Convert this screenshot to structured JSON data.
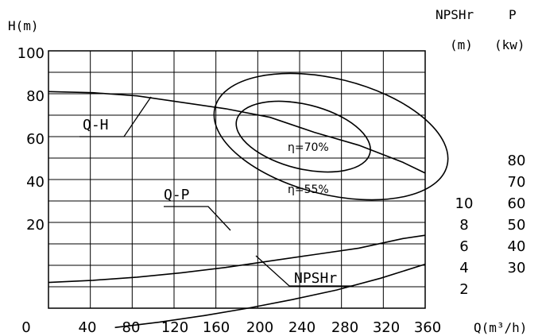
{
  "chart_data": {
    "type": "line",
    "x_axis": {
      "label": "Q(m³/h)",
      "min": 0,
      "max": 340,
      "ticks": [
        "0",
        "40",
        "80",
        "120",
        "160",
        "200",
        "240",
        "280",
        "320",
        "360"
      ]
    },
    "y_axes": {
      "head": {
        "title": "H(m)",
        "min": 0,
        "max": 100,
        "ticks": [
          "100",
          "80",
          "60",
          "40",
          "20"
        ]
      },
      "npshr": {
        "title": "NPSHr",
        "unit": "(m)",
        "ticks": [
          "10",
          "8",
          "6",
          "4",
          "2"
        ]
      },
      "power": {
        "title": "P",
        "unit": "(kw)",
        "ticks": [
          "80",
          "70",
          "60",
          "50",
          "40",
          "30"
        ]
      }
    },
    "series": [
      {
        "name": "Q-H",
        "axis": "head",
        "x": [
          0,
          40,
          80,
          120,
          160,
          200,
          240,
          280,
          320,
          340
        ],
        "y": [
          81,
          80.5,
          79,
          76,
          73,
          69,
          62,
          56,
          48,
          43
        ]
      },
      {
        "name": "Q-P",
        "axis": "power",
        "x": [
          0,
          40,
          80,
          120,
          160,
          200,
          240,
          280,
          320,
          340
        ],
        "y": [
          22,
          23,
          24.5,
          26.5,
          29,
          32,
          35,
          38,
          42.5,
          44
        ]
      },
      {
        "name": "NPSHr",
        "axis": "npshr",
        "x": [
          60,
          100,
          140,
          180,
          220,
          260,
          300,
          340
        ],
        "y": [
          2.2,
          2.7,
          3.3,
          4.0,
          4.8,
          5.7,
          6.8,
          8.1
        ]
      }
    ],
    "efficiency_contours": [
      {
        "label": "η=70%",
        "cx": 230,
        "cy": 60,
        "rx": 62,
        "ry": 15
      },
      {
        "label": "η=55%",
        "cx": 255,
        "cy": 60,
        "rx": 108,
        "ry": 27
      }
    ],
    "grid": true
  }
}
